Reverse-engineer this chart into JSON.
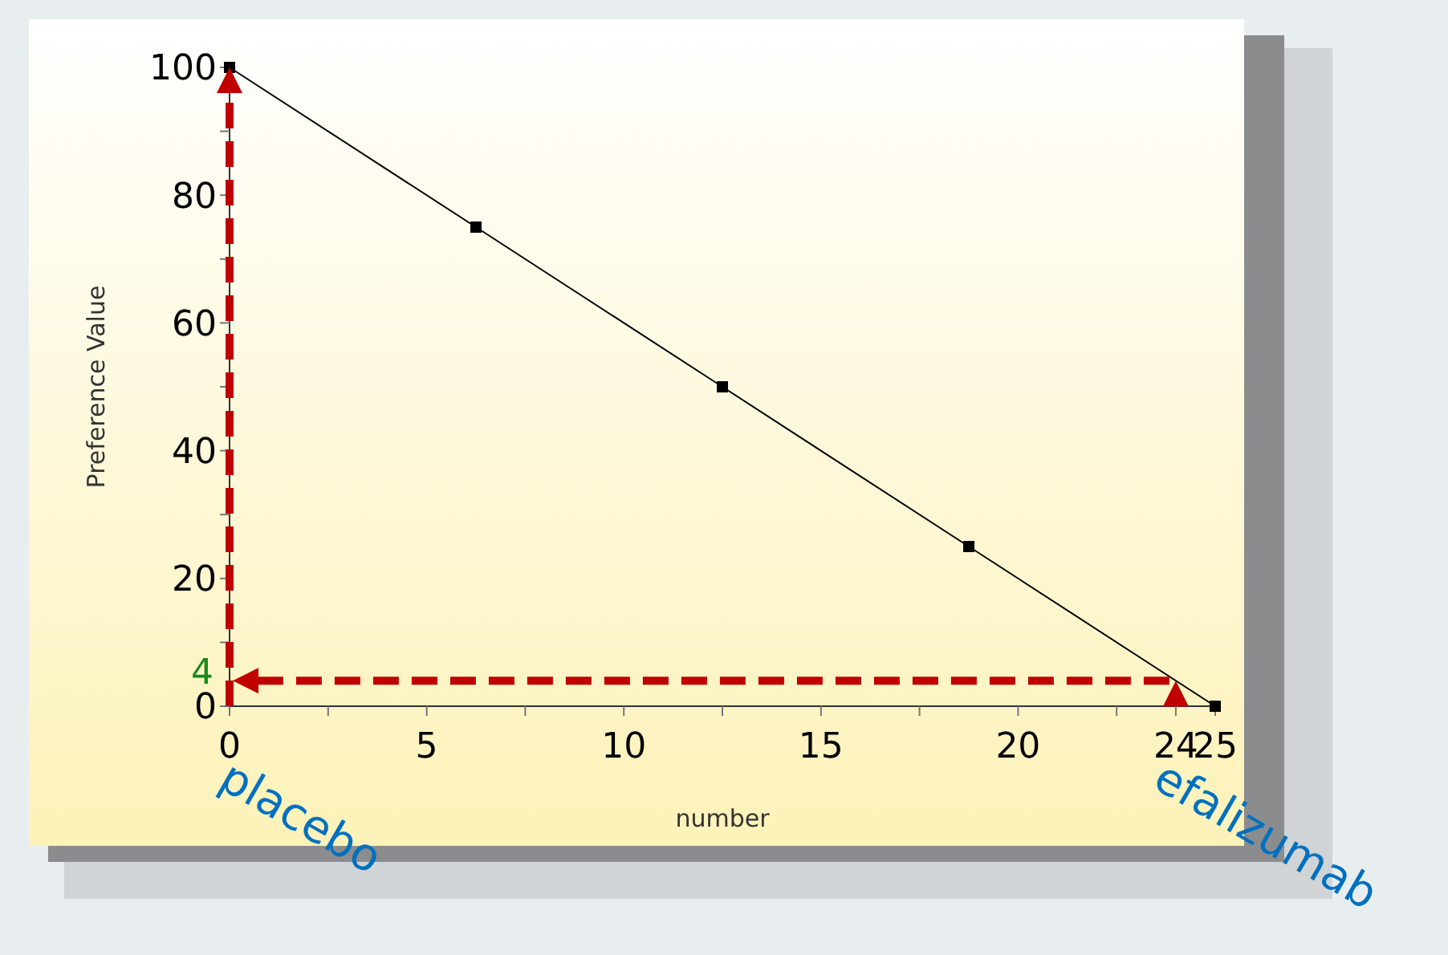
{
  "chart_data": {
    "type": "line",
    "xlabel": "number",
    "ylabel": "Preference Value",
    "x": [
      0,
      6.25,
      12.5,
      18.75,
      25
    ],
    "series": [
      {
        "color": "#000000",
        "values": [
          100,
          75,
          50,
          25,
          0
        ],
        "marker": "square",
        "line_style": "solid"
      }
    ],
    "xlim": [
      0,
      25
    ],
    "ylim": [
      0,
      100
    ],
    "xticks": [
      0,
      {
        "value": 2.5,
        "label": null
      },
      5,
      {
        "value": 7.5,
        "label": null
      },
      10,
      {
        "value": 12.5,
        "label": null
      },
      15,
      {
        "value": 17.5,
        "label": null
      },
      20,
      {
        "value": 22.5,
        "label": null
      },
      24,
      25
    ],
    "yticks": [
      0,
      {
        "value": 10,
        "label": null
      },
      20,
      {
        "value": 30,
        "label": null
      },
      40,
      {
        "value": 50,
        "label": null
      },
      60,
      {
        "value": 70,
        "label": null
      },
      80,
      {
        "value": 90,
        "label": null
      },
      100
    ],
    "ref_lines": [
      {
        "axis": "y",
        "value": 4,
        "label": "4",
        "color": "#c00000",
        "line_style": "dashed"
      }
    ],
    "annotations": [
      "placebo",
      "efalizumab"
    ],
    "grid": false
  }
}
